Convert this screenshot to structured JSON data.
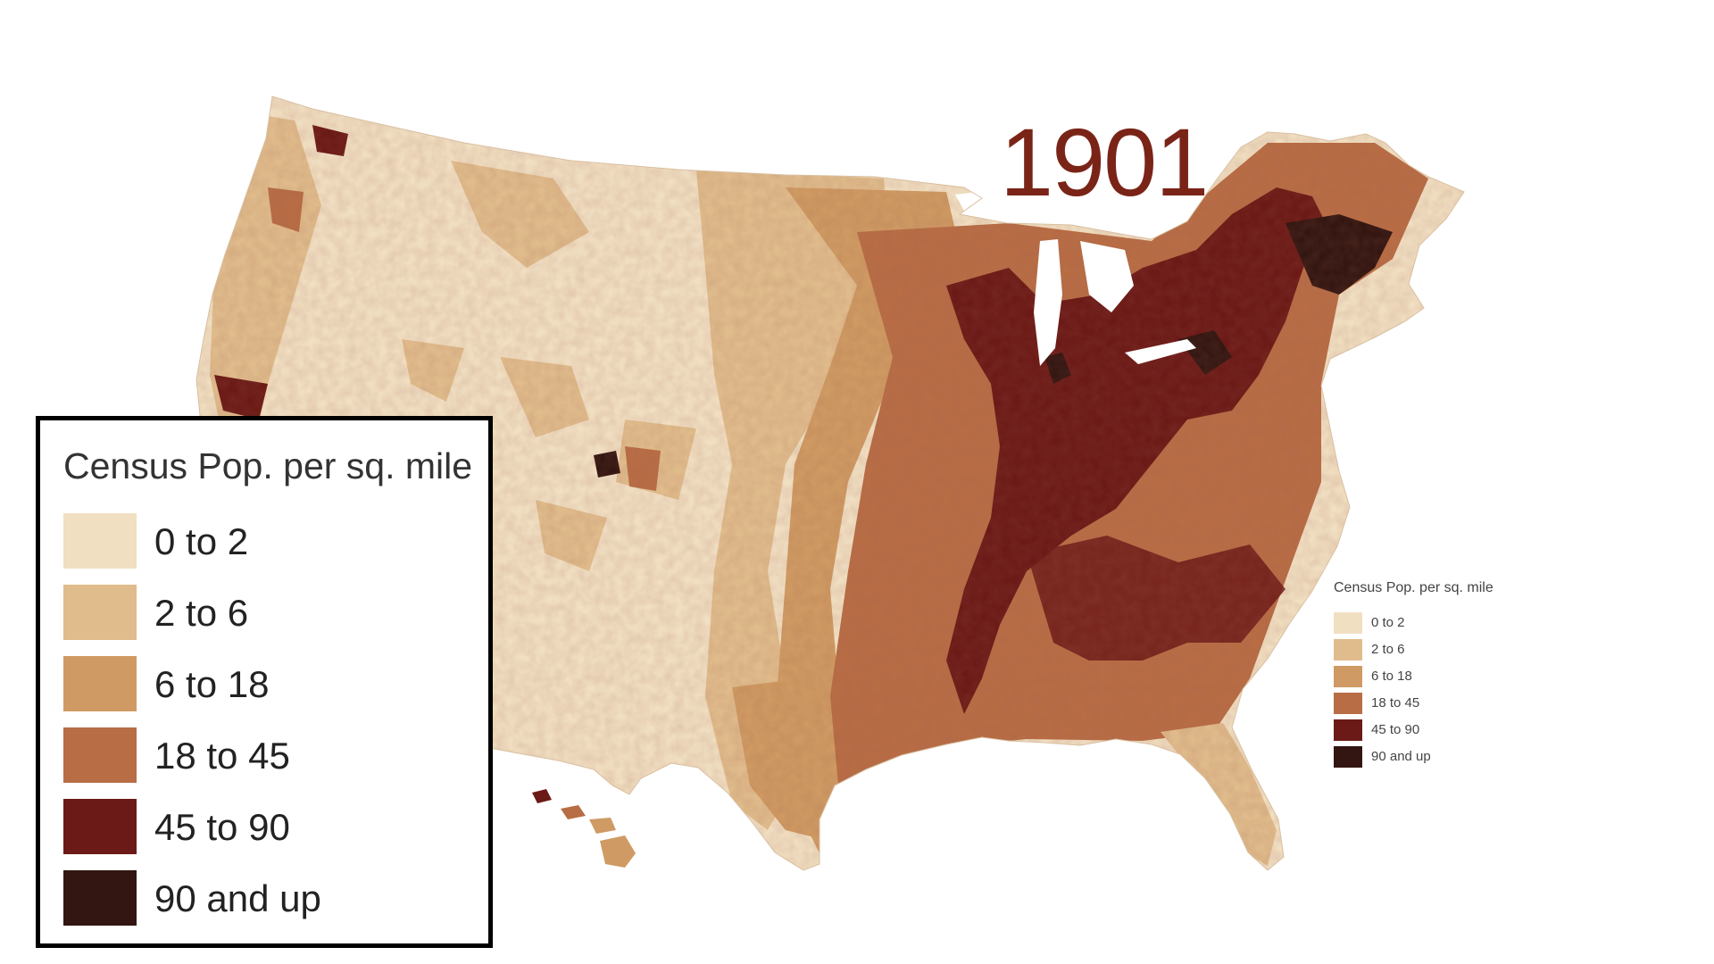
{
  "year": "1901",
  "legend": {
    "title": "Census Pop. per sq. mile",
    "items": [
      {
        "label": "0 to 2",
        "color": "#f1dfc2"
      },
      {
        "label": "2 to 6",
        "color": "#e0bc8c"
      },
      {
        "label": "6 to 18",
        "color": "#cf9a63"
      },
      {
        "label": "18 to 45",
        "color": "#b86d45"
      },
      {
        "label": "45 to 90",
        "color": "#6c1a17"
      },
      {
        "label": "90 and up",
        "color": "#331611"
      }
    ]
  }
}
